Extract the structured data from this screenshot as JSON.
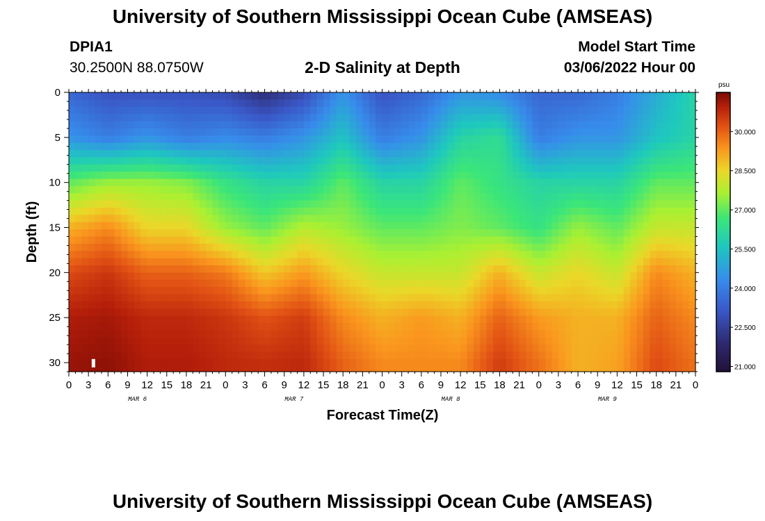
{
  "header": {
    "title": "University of Southern Mississippi Ocean Cube (AMSEAS)",
    "station_id": "DPIA1",
    "station_coords": "30.2500N  88.0750W",
    "plot_title": "2-D Salinity at Depth",
    "model_start_label": "Model Start Time",
    "model_start_value": "03/06/2022 Hour 00"
  },
  "footer": {
    "title": "University of Southern Mississippi Ocean Cube (AMSEAS)"
  },
  "chart_data": {
    "type": "heatmap",
    "title": "2-D Salinity at Depth",
    "xlabel": "Forecast Time(Z)",
    "ylabel": "Depth (ft)",
    "x_range_hours": [
      0,
      96
    ],
    "x_tick_labels": [
      "0",
      "3",
      "6",
      "9",
      "12",
      "15",
      "18",
      "21",
      "0",
      "3",
      "6",
      "9",
      "12",
      "15",
      "18",
      "21",
      "0",
      "3",
      "6",
      "9",
      "12",
      "15",
      "18",
      "21",
      "0",
      "3",
      "6",
      "9",
      "12",
      "15",
      "18",
      "21",
      "0"
    ],
    "date_labels": [
      {
        "label": "MAR 6",
        "hour": 10.5
      },
      {
        "label": "MAR 7",
        "hour": 34.5
      },
      {
        "label": "MAR 8",
        "hour": 58.5
      },
      {
        "label": "MAR 9",
        "hour": 82.5
      }
    ],
    "y_range_ft": [
      0,
      31
    ],
    "y_ticks": [
      0,
      5,
      10,
      15,
      20,
      25,
      30
    ],
    "colorbar": {
      "unit": "psu",
      "min": 20.8,
      "max": 31.5,
      "tick_labels": [
        "30.000",
        "28.500",
        "27.000",
        "25.500",
        "24.000",
        "22.500",
        "21.000"
      ],
      "tick_values": [
        30.0,
        28.5,
        27.0,
        25.5,
        24.0,
        22.5,
        21.0
      ]
    },
    "profiles": {
      "description": "Approximate salinity (psu) at depths 0,5,10,15,20,25,30 ft sampled every 6 forecast hours (hour 0..96)",
      "depths_ft": [
        0,
        5,
        10,
        15,
        20,
        25,
        30
      ],
      "hours": [
        0,
        6,
        12,
        18,
        24,
        30,
        36,
        42,
        48,
        54,
        60,
        66,
        72,
        78,
        84,
        90,
        96
      ],
      "salinity": [
        [
          23.5,
          24.5,
          27.0,
          29.0,
          30.3,
          31.0,
          31.2
        ],
        [
          23.0,
          24.0,
          27.5,
          29.5,
          30.6,
          31.1,
          31.3
        ],
        [
          23.0,
          24.5,
          27.5,
          28.5,
          30.0,
          30.8,
          31.0
        ],
        [
          23.0,
          24.0,
          27.3,
          28.5,
          30.0,
          30.8,
          31.0
        ],
        [
          22.8,
          24.3,
          26.5,
          27.5,
          29.7,
          30.6,
          30.8
        ],
        [
          22.0,
          24.0,
          26.0,
          27.0,
          28.7,
          30.2,
          30.7
        ],
        [
          22.8,
          24.5,
          26.0,
          27.8,
          29.3,
          30.5,
          30.8
        ],
        [
          24.5,
          25.5,
          27.0,
          27.5,
          28.5,
          29.5,
          30.0
        ],
        [
          23.0,
          24.0,
          26.0,
          27.0,
          28.0,
          29.0,
          29.5
        ],
        [
          23.5,
          24.5,
          26.0,
          27.0,
          28.0,
          29.3,
          29.5
        ],
        [
          24.5,
          26.0,
          27.0,
          27.3,
          28.0,
          29.0,
          29.5
        ],
        [
          24.3,
          26.3,
          26.5,
          27.0,
          29.0,
          30.0,
          30.5
        ],
        [
          23.5,
          24.0,
          26.0,
          26.5,
          28.0,
          29.3,
          29.8
        ],
        [
          23.5,
          24.5,
          26.0,
          27.5,
          28.5,
          29.0,
          29.0
        ],
        [
          24.0,
          24.5,
          26.0,
          27.0,
          28.0,
          29.0,
          29.2
        ],
        [
          25.0,
          25.5,
          27.0,
          28.0,
          29.5,
          30.0,
          30.3
        ],
        [
          26.0,
          26.0,
          27.0,
          28.0,
          29.0,
          29.5,
          29.8
        ]
      ]
    }
  }
}
